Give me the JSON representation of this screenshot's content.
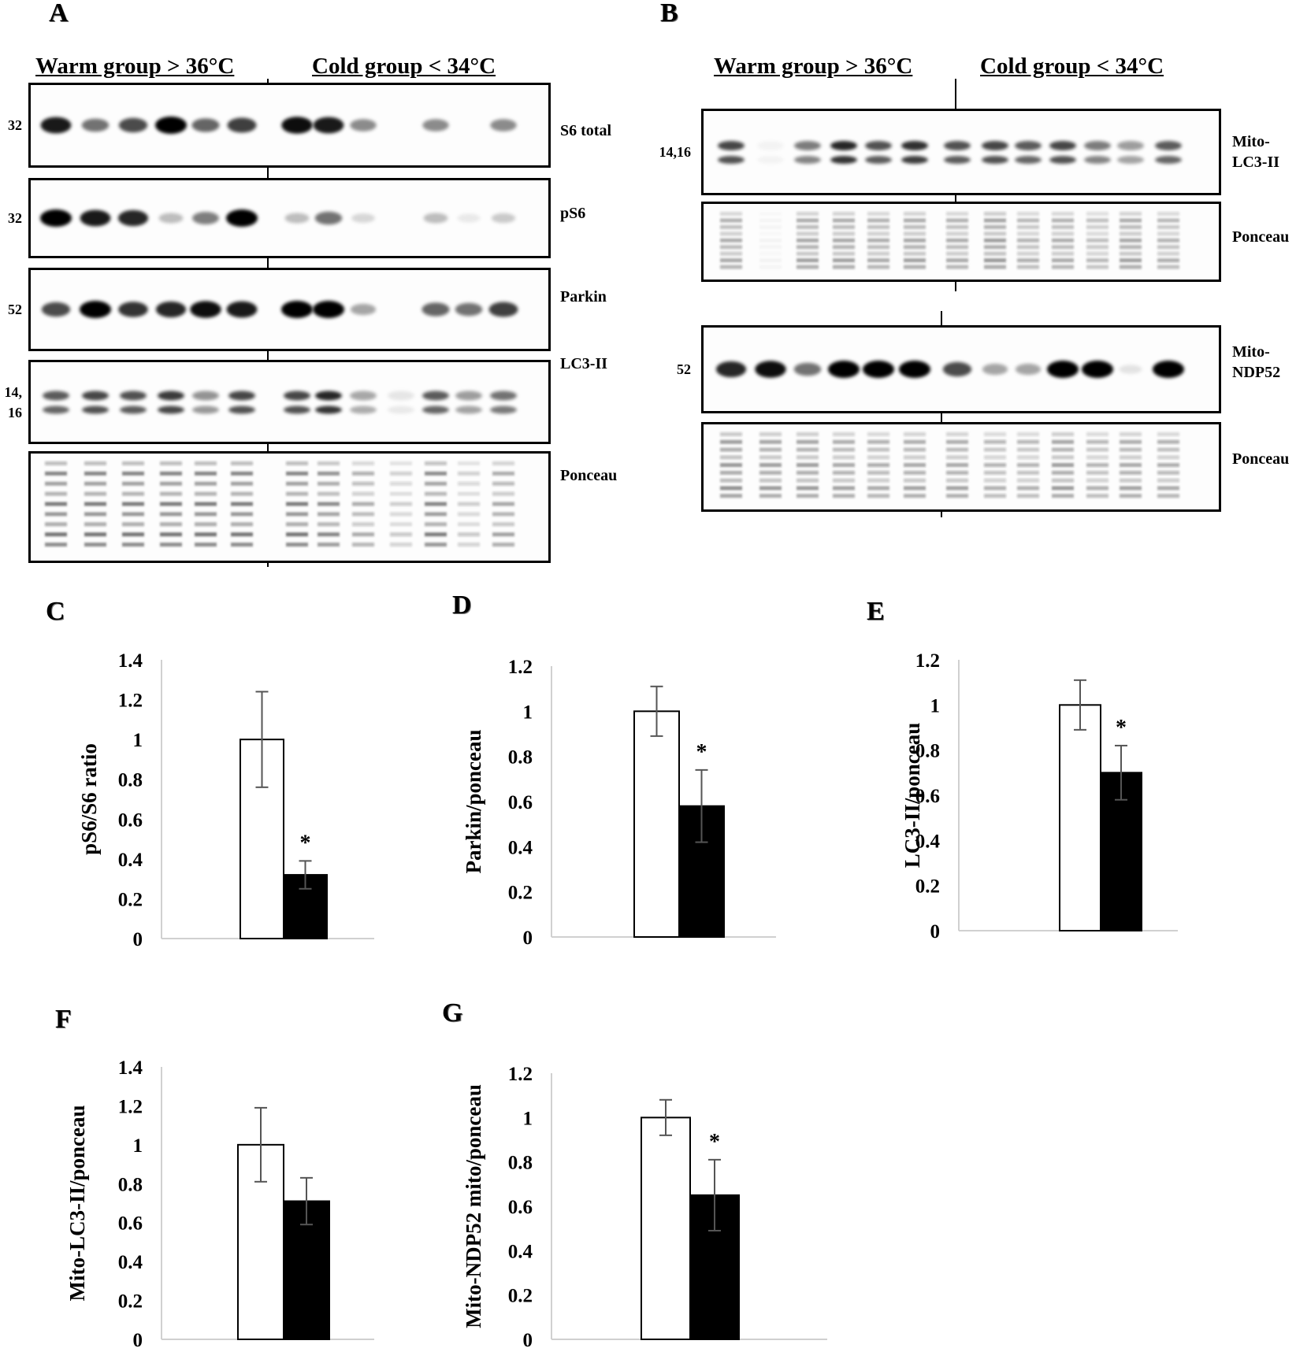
{
  "panel_a": {
    "letter": "A",
    "warm_label": "Warm group > 36°C",
    "cold_label": "Cold group < 34°C",
    "blots": [
      {
        "label": "S6 total",
        "mw": "32",
        "type": "band",
        "warm": [
          0.9,
          0.55,
          0.7,
          1.0,
          0.6,
          0.75
        ],
        "cold": [
          0.95,
          0.9,
          0.45,
          0.0,
          0.45,
          0.0,
          0.45
        ]
      },
      {
        "label": "pS6",
        "mw": "32",
        "type": "band",
        "warm": [
          1.0,
          0.9,
          0.85,
          0.25,
          0.5,
          1.0
        ],
        "cold": [
          0.25,
          0.55,
          0.15,
          0.0,
          0.25,
          0.08,
          0.2
        ]
      },
      {
        "label": "Parkin",
        "mw": "52",
        "type": "band",
        "warm": [
          0.7,
          1.0,
          0.8,
          0.85,
          0.95,
          0.9
        ],
        "cold": [
          1.0,
          1.0,
          0.35,
          0.0,
          0.6,
          0.55,
          0.75
        ]
      },
      {
        "label": "LC3-II",
        "mw": "14,\n16",
        "type": "double",
        "warm": [
          0.75,
          0.85,
          0.8,
          0.9,
          0.5,
          0.85
        ],
        "cold": [
          0.85,
          1.0,
          0.4,
          0.1,
          0.75,
          0.45,
          0.65
        ]
      },
      {
        "label": "Ponceau",
        "mw": "",
        "type": "ponceau",
        "warm": [
          0.8,
          0.8,
          0.8,
          0.8,
          0.8,
          0.8
        ],
        "cold": [
          0.8,
          0.7,
          0.5,
          0.3,
          0.75,
          0.3,
          0.55
        ]
      }
    ]
  },
  "panel_b": {
    "letter": "B",
    "warm_label": "Warm group > 36°C",
    "cold_label": "Cold group < 34°C",
    "blots": [
      {
        "label": "Mito-\nLC3-II",
        "mw": "14,16",
        "type": "double",
        "warm": [
          0.85,
          0.05,
          0.6,
          1.0,
          0.8,
          0.95
        ],
        "cold": [
          0.8,
          0.85,
          0.75,
          0.85,
          0.6,
          0.45,
          0.75
        ]
      },
      {
        "label": "Ponceau",
        "mw": "",
        "type": "ponceau",
        "warm": [
          0.5,
          0.05,
          0.55,
          0.55,
          0.5,
          0.55
        ],
        "cold": [
          0.5,
          0.6,
          0.45,
          0.5,
          0.4,
          0.55,
          0.45
        ]
      },
      {
        "label": "Mito-\nNDP52",
        "mw": "52",
        "type": "band",
        "warm": [
          0.85,
          0.95,
          0.55,
          1.0,
          1.0,
          1.0
        ],
        "cold": [
          0.7,
          0.35,
          0.35,
          1.0,
          1.0,
          0.1,
          1.0
        ]
      },
      {
        "label": "Ponceau",
        "mw": "",
        "type": "ponceau",
        "warm": [
          0.65,
          0.6,
          0.6,
          0.55,
          0.5,
          0.55
        ],
        "cold": [
          0.55,
          0.45,
          0.45,
          0.6,
          0.45,
          0.55,
          0.5
        ]
      }
    ]
  },
  "colors": {
    "warm_bar": "#ffffff",
    "cold_bar": "#000000",
    "axis": "#d0d0d0",
    "error": "#555555"
  },
  "chart_data": [
    {
      "letter": "C",
      "type": "bar",
      "ylabel": "pS6/S6 ratio",
      "yticks": [
        "0",
        "0.2",
        "0.4",
        "0.6",
        "0.8",
        "1",
        "1.2",
        "1.4"
      ],
      "ylim": [
        0,
        1.4
      ],
      "series": [
        {
          "values": [
            1.0
          ],
          "errors": [
            0.24
          ],
          "fill": "#ffffff"
        },
        {
          "values": [
            0.32
          ],
          "errors": [
            0.07
          ],
          "fill": "#000000"
        }
      ],
      "significance": "*"
    },
    {
      "letter": "D",
      "type": "bar",
      "ylabel": "Parkin/ponceau",
      "yticks": [
        "0",
        "0.2",
        "0.4",
        "0.6",
        "0.8",
        "1",
        "1.2"
      ],
      "ylim": [
        0,
        1.2
      ],
      "series": [
        {
          "values": [
            1.0
          ],
          "errors": [
            0.11
          ],
          "fill": "#ffffff"
        },
        {
          "values": [
            0.58
          ],
          "errors": [
            0.16
          ],
          "fill": "#000000"
        }
      ],
      "significance": "*"
    },
    {
      "letter": "E",
      "type": "bar",
      "ylabel": "LC3-II/ponceau",
      "yticks": [
        "0",
        "0.2",
        "0.4",
        "0.6",
        "0.8",
        "1",
        "1.2"
      ],
      "ylim": [
        0,
        1.2
      ],
      "series": [
        {
          "values": [
            1.0
          ],
          "errors": [
            0.11
          ],
          "fill": "#ffffff"
        },
        {
          "values": [
            0.7
          ],
          "errors": [
            0.12
          ],
          "fill": "#000000"
        }
      ],
      "significance": "*"
    },
    {
      "letter": "F",
      "type": "bar",
      "ylabel": "Mito-LC3-II/ponceau",
      "yticks": [
        "0",
        "0.2",
        "0.4",
        "0.6",
        "0.8",
        "1",
        "1.2",
        "1.4"
      ],
      "ylim": [
        0,
        1.4
      ],
      "series": [
        {
          "values": [
            1.0
          ],
          "errors": [
            0.19
          ],
          "fill": "#ffffff"
        },
        {
          "values": [
            0.71
          ],
          "errors": [
            0.12
          ],
          "fill": "#000000"
        }
      ],
      "significance": ""
    },
    {
      "letter": "G",
      "type": "bar",
      "ylabel": "Mito-NDP52 mito/ponceau",
      "yticks": [
        "0",
        "0.2",
        "0.4",
        "0.6",
        "0.8",
        "1",
        "1.2"
      ],
      "ylim": [
        0,
        1.2
      ],
      "series": [
        {
          "values": [
            1.0
          ],
          "errors": [
            0.08
          ],
          "fill": "#ffffff"
        },
        {
          "values": [
            0.65
          ],
          "errors": [
            0.16
          ],
          "fill": "#000000"
        }
      ],
      "significance": "*"
    }
  ]
}
